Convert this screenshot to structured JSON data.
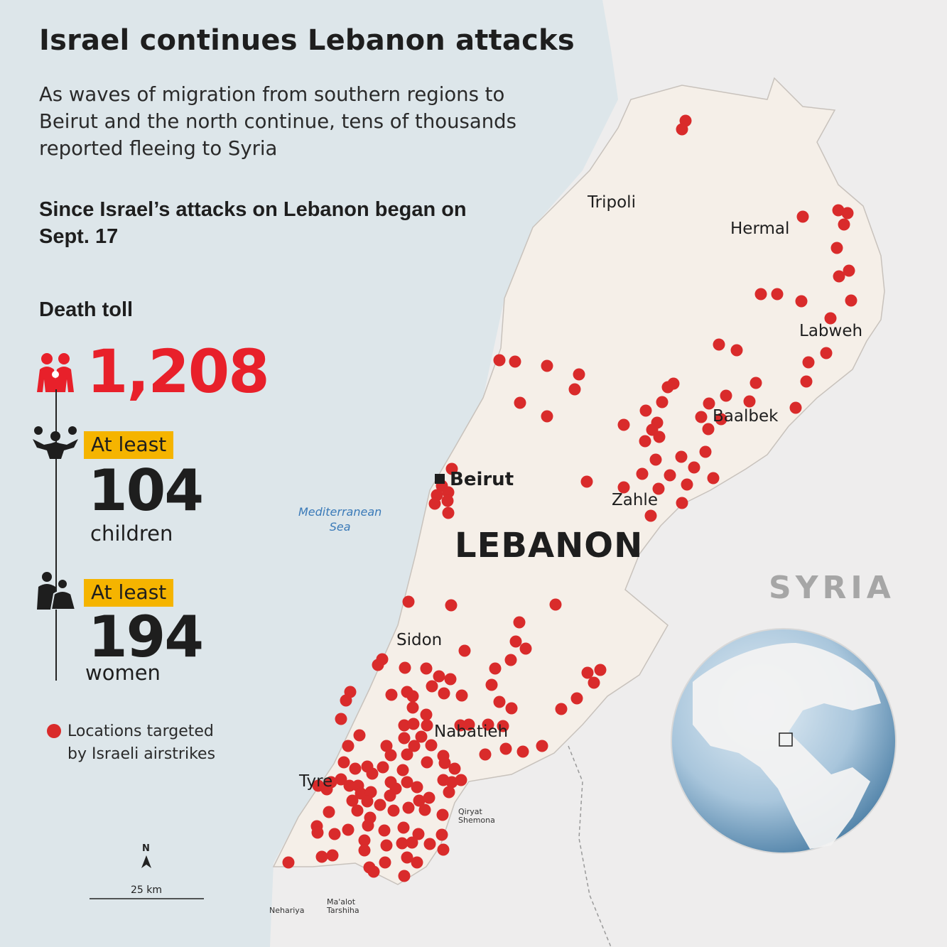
{
  "header": {
    "title": "Israel continues Lebanon attacks",
    "subtitle": "As waves of migration from southern regions to Beirut and the north continue, tens of thousands reported fleeing to Syria",
    "since": "Since Israel’s attacks on Lebanon began on Sept. 17"
  },
  "stats": {
    "death_label": "Death toll",
    "death_value": "1,208",
    "children_badge": "At least",
    "children_value": "104",
    "children_label": "children",
    "women_badge": "At least",
    "women_value": "194",
    "women_label": "women"
  },
  "legend": {
    "text_line1": "Locations targeted",
    "text_line2": "by Israeli airstrikes",
    "color": "#d92b2b"
  },
  "map": {
    "country_label": "LEBANON",
    "neighbor_label": "SYRIA",
    "sea_line1": "Mediterranean",
    "sea_line2": "Sea",
    "cities": {
      "tripoli": "Tripoli",
      "hermal": "Hermal",
      "labweh": "Labweh",
      "baalbek": "Baalbek",
      "beirut": "Beirut",
      "zahle": "Zahle",
      "sidon": "Sidon",
      "nabatieh": "Nabatieh",
      "tyre": "Tyre"
    },
    "towns": {
      "qiryat_1": "Qiryat",
      "qiryat_2": "Shemona",
      "nahariya": "Nehariya",
      "maalot_1": "Ma'alot",
      "maalot_2": "Tarshiha"
    },
    "north_label": "N",
    "scale_label": "25 km",
    "colors": {
      "sea": "#dde6ea",
      "land": "#eeeded",
      "lebanon": "#f5efe8",
      "strike": "#d92b2b",
      "accent": "#e8202a",
      "badge": "#f5b400"
    }
  }
}
